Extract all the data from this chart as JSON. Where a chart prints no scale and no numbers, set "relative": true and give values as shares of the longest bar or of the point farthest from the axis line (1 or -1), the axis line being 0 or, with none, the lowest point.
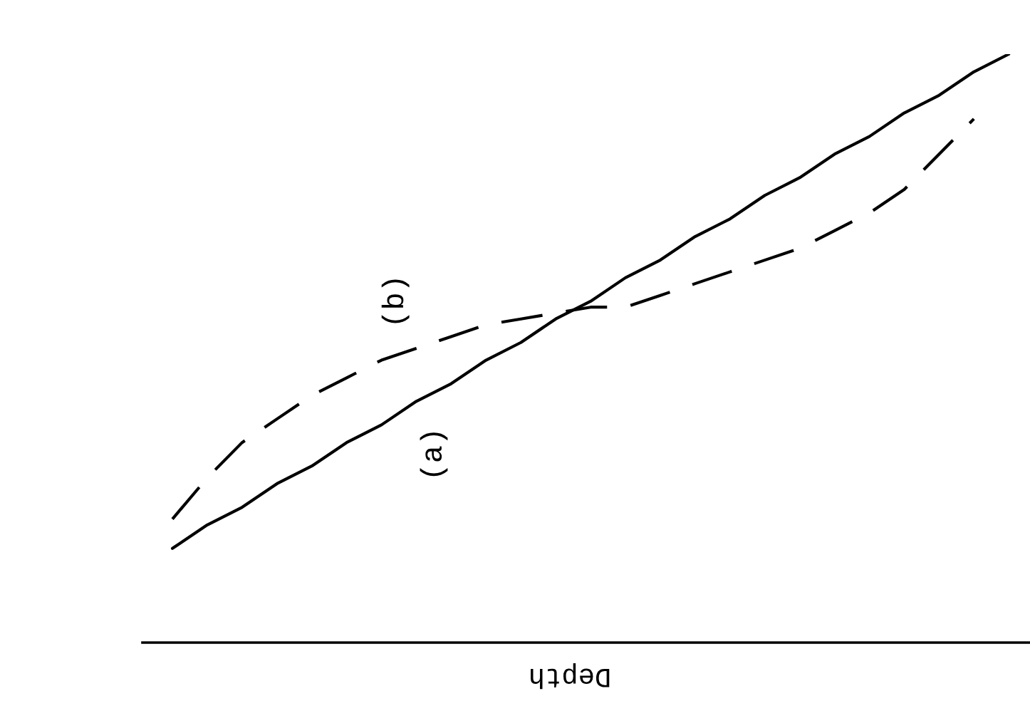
{
  "chart_data": {
    "type": "line",
    "relative": true,
    "xlabel": "Depth",
    "categories": [
      null,
      null,
      null,
      null,
      null,
      null,
      null,
      null,
      null,
      null,
      null,
      null,
      null,
      null,
      null,
      null,
      null,
      null,
      null,
      null,
      null,
      null,
      null,
      null,
      null
    ],
    "series": [
      {
        "name": "(a)",
        "color": "#000000",
        "line_style": "solid",
        "values": [
          0.16,
          0.2,
          0.23,
          0.27,
          0.3,
          0.34,
          0.37,
          0.41,
          0.44,
          0.48,
          0.51,
          0.55,
          0.58,
          0.62,
          0.65,
          0.69,
          0.72,
          0.76,
          0.79,
          0.83,
          0.86,
          0.9,
          0.93,
          0.97,
          1.0
        ]
      },
      {
        "name": "(b)",
        "color": "#000000",
        "line_style": "dashed",
        "values": [
          0.21,
          0.28,
          0.34,
          0.38,
          0.42,
          0.45,
          0.48,
          0.5,
          0.52,
          0.54,
          0.55,
          0.56,
          0.57,
          0.57,
          0.59,
          0.61,
          0.63,
          0.65,
          0.67,
          0.7,
          0.73,
          0.77,
          0.83,
          0.89,
          null
        ]
      }
    ],
    "grid": false,
    "legend": false,
    "marker": "none"
  }
}
